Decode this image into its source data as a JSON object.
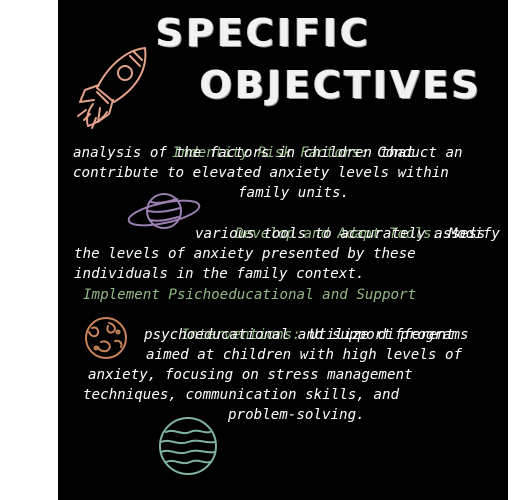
{
  "title": {
    "line1": "SPECIFIC",
    "line2": "OBJECTIVES"
  },
  "objectives": [
    {
      "heading": "Indentity Risk Factors:",
      "lines": [
        "Conduct an",
        "analysis of the factors in children that",
        "contribute to elevated anxiety levels within",
        "family units."
      ]
    },
    {
      "heading": "Develop and Adapt Tools:",
      "lines": [
        "Modify",
        "various tools to accurately assess",
        "the levels of anxiety presented by these",
        "individuals in the family context."
      ]
    },
    {
      "heading_line1": "Implement Psichoeducational and Support",
      "heading_line2": "Interventions:",
      "lines": [
        "Utilize different",
        "psychoeducational and support programs",
        "aimed at children with high levels of",
        "anxiety, focusing on stress management",
        "techniques, communication skills, and",
        "problem-solving."
      ]
    }
  ],
  "colors": {
    "background": "#000000",
    "highlight": "#93b984",
    "body_text": "#ffffff",
    "rocket": "#e3a38a",
    "planet_purple": "#9b7fb0",
    "planet_brown": "#c8835a",
    "planet_teal": "#7fb2a5"
  },
  "icons": [
    "rocket-icon",
    "ringed-planet-icon",
    "earth-planet-icon",
    "striped-planet-icon"
  ]
}
